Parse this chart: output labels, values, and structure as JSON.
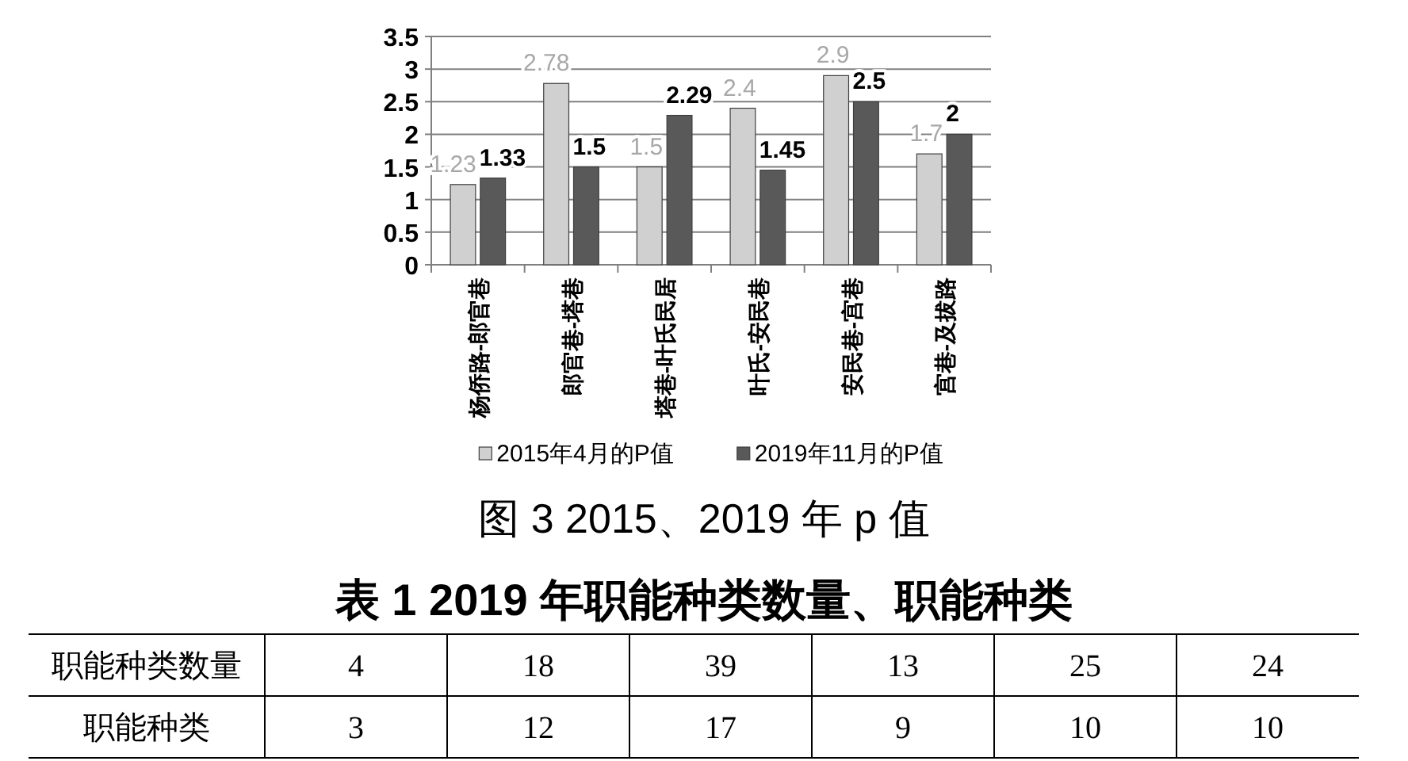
{
  "chart_data": [
    {
      "type": "bar",
      "title": "图 3 2015、2019 年 p 值",
      "categories": [
        "杨侨路-郎官巷",
        "郎官巷-塔巷",
        "塔巷-叶氏民居",
        "叶氏-安民巷",
        "安民巷-宫巷",
        "宫巷-及拔路"
      ],
      "series": [
        {
          "name": "2015年4月的P值",
          "color": "#d0d0d0",
          "values": [
            1.23,
            2.78,
            1.5,
            2.4,
            2.9,
            1.7
          ]
        },
        {
          "name": "2019年11月的P值",
          "color": "#595959",
          "values": [
            1.33,
            1.5,
            2.29,
            1.45,
            2.5,
            2
          ]
        }
      ],
      "ylim": [
        0,
        3.5
      ],
      "yticks": [
        0,
        0.5,
        1,
        1.5,
        2,
        2.5,
        3,
        3.5
      ],
      "grid": "y",
      "legend": "bottom",
      "data_labels": true
    },
    {
      "type": "other",
      "title": "表 1 2019 年职能种类数量、职能种类",
      "annotations": [
        "职能种类数量",
        "4",
        "18",
        "39",
        "13",
        "25",
        "24",
        "职能种类",
        "3",
        "12",
        "17",
        "9",
        "10",
        "10"
      ]
    }
  ]
}
